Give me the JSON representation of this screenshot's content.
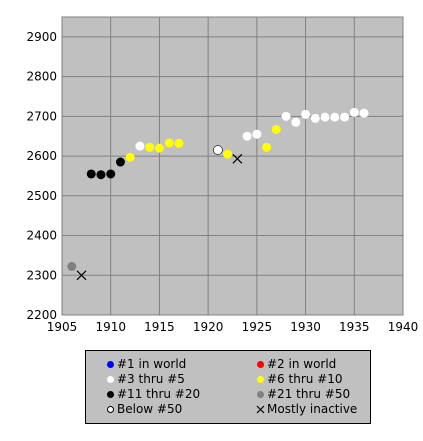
{
  "chart_data": {
    "type": "scatter",
    "xlim": [
      1905,
      1940
    ],
    "ylim": [
      2200,
      2950
    ],
    "x_ticks": [
      "1905",
      "1910",
      "1915",
      "1920",
      "1925",
      "1930",
      "1935",
      "1940"
    ],
    "y_ticks": [
      "2200",
      "2300",
      "2400",
      "2500",
      "2600",
      "2700",
      "2800",
      "2900"
    ],
    "grid": true,
    "legend_position": "bottom",
    "colors": {
      "plot_background": "#c0c0c0",
      "grid": "#808080",
      "rank_1": "#0000ff",
      "rank_2": "#ff0000",
      "rank_3_5": "#ffffff",
      "rank_6_10": "#ffff00",
      "rank_11_20": "#000000",
      "rank_21_50": "#808080",
      "below_50": "#ffffff",
      "inactive": "#000000"
    },
    "series": [
      {
        "name": "#1 in world",
        "marker": "dot",
        "color": "#0000ff",
        "x": [],
        "y": []
      },
      {
        "name": "#2 in world",
        "marker": "dot",
        "color": "#ff0000",
        "x": [],
        "y": []
      },
      {
        "name": "#3 thru #5",
        "marker": "dot",
        "color": "#ffffff",
        "x": [
          1913,
          1924,
          1925,
          1928,
          1929,
          1930,
          1931,
          1932,
          1933,
          1934,
          1935,
          1936
        ],
        "y": [
          2625,
          2650,
          2655,
          2700,
          2685,
          2705,
          2695,
          2698,
          2698,
          2698,
          2710,
          2708
        ]
      },
      {
        "name": "#6 thru #10",
        "marker": "dot",
        "color": "#ffff00",
        "x": [
          1912,
          1914,
          1915,
          1916,
          1917,
          1922,
          1926,
          1927
        ],
        "y": [
          2597,
          2622,
          2620,
          2633,
          2632,
          2605,
          2622,
          2667
        ]
      },
      {
        "name": "#11 thru #20",
        "marker": "dot",
        "color": "#000000",
        "x": [
          1908,
          1909,
          1910,
          1911
        ],
        "y": [
          2555,
          2553,
          2555,
          2585
        ]
      },
      {
        "name": "#21 thru #50",
        "marker": "dot",
        "color": "#808080",
        "x": [
          1906
        ],
        "y": [
          2322
        ]
      },
      {
        "name": "Below #50",
        "marker": "circle",
        "color": "#ffffff",
        "x": [
          1921
        ],
        "y": [
          2615
        ]
      },
      {
        "name": "Mostly inactive",
        "marker": "x",
        "color": "#000000",
        "x": [
          1907,
          1923
        ],
        "y": [
          2300,
          2593
        ]
      }
    ]
  },
  "legend": {
    "items": [
      {
        "label": "#1 in world",
        "series": 0
      },
      {
        "label": "#2 in world",
        "series": 1
      },
      {
        "label": "#3 thru #5",
        "series": 2
      },
      {
        "label": "#6 thru #10",
        "series": 3
      },
      {
        "label": "#11 thru #20",
        "series": 4
      },
      {
        "label": "#21 thru #50",
        "series": 5
      },
      {
        "label": "Below #50",
        "series": 6
      },
      {
        "label": "Mostly inactive",
        "series": 7
      }
    ]
  }
}
